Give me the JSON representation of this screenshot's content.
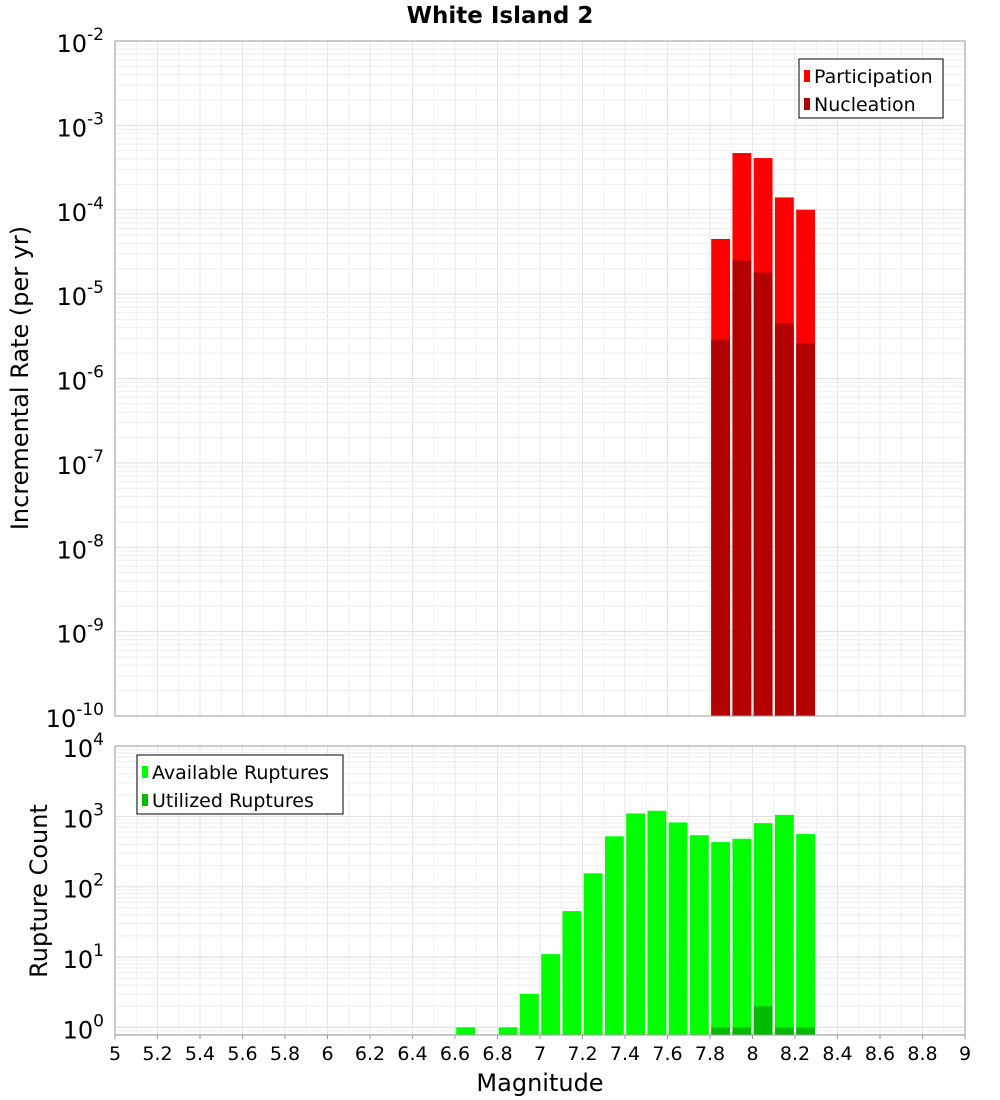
{
  "chart_data": [
    {
      "type": "bar",
      "title": "White Island 2",
      "xlabel": "",
      "ylabel": "Incremental Rate (per yr)",
      "yscale": "log",
      "xlim": [
        5,
        9
      ],
      "ylim": [
        1e-10,
        0.01
      ],
      "y_tick_exponents": [
        -2,
        -3,
        -4,
        -5,
        -6,
        -7,
        -8,
        -9,
        -10
      ],
      "y_tick_base": "10",
      "grid": true,
      "legend_position": "top-right",
      "bar_width": 0.1,
      "series": [
        {
          "name": "Participation",
          "color": "#ff0000",
          "x": [
            7.85,
            7.95,
            8.05,
            8.15,
            8.25
          ],
          "values": [
            4.5e-05,
            0.00047,
            0.00041,
            0.00014,
            0.0001
          ]
        },
        {
          "name": "Nucleation",
          "color": "#b30000",
          "x": [
            7.85,
            7.95,
            8.05,
            8.15,
            8.25
          ],
          "values": [
            2.9e-06,
            2.5e-05,
            1.8e-05,
            4.5e-06,
            2.6e-06
          ]
        }
      ]
    },
    {
      "type": "bar",
      "title": "",
      "xlabel": "Magnitude",
      "ylabel": "Rupture Count",
      "yscale": "log",
      "xlim": [
        5,
        9
      ],
      "ylim": [
        0.78,
        10000.0
      ],
      "x_ticks": [
        "5",
        "5.2",
        "5.4",
        "5.6",
        "5.8",
        "6",
        "6.2",
        "6.4",
        "6.6",
        "6.8",
        "7",
        "7.2",
        "7.4",
        "7.6",
        "7.8",
        "8",
        "8.2",
        "8.4",
        "8.6",
        "8.8",
        "9"
      ],
      "y_tick_exponents": [
        0,
        1,
        2,
        3,
        4
      ],
      "y_tick_base": "10",
      "grid": true,
      "legend_position": "top-left",
      "bar_width": 0.1,
      "series": [
        {
          "name": "Available Ruptures",
          "color": "#00ff00",
          "x": [
            6.65,
            6.85,
            6.95,
            7.05,
            7.15,
            7.25,
            7.35,
            7.45,
            7.55,
            7.65,
            7.75,
            7.85,
            7.95,
            8.05,
            8.15,
            8.25
          ],
          "values": [
            1,
            1,
            3,
            11,
            45,
            155,
            520,
            1100,
            1200,
            820,
            540,
            430,
            480,
            800,
            1050,
            560
          ]
        },
        {
          "name": "Utilized Ruptures",
          "color": "#00bb00",
          "x": [
            7.85,
            7.95,
            8.05,
            8.15,
            8.25
          ],
          "values": [
            1,
            1,
            2,
            1,
            1
          ]
        }
      ]
    }
  ]
}
